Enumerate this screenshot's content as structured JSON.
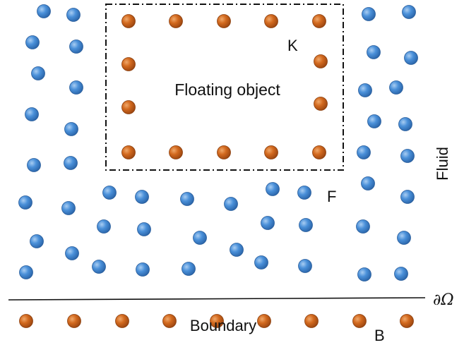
{
  "labels": {
    "floating_object": "Floating object",
    "k": "K",
    "f": "F",
    "fluid": "Fluid",
    "boundary_symbol": "∂Ω",
    "boundary": "Boundary",
    "b": "B"
  },
  "colors": {
    "fluid_particle": "#4a90d9",
    "solid_particle": "#d2691e",
    "line": "#111111"
  }
}
